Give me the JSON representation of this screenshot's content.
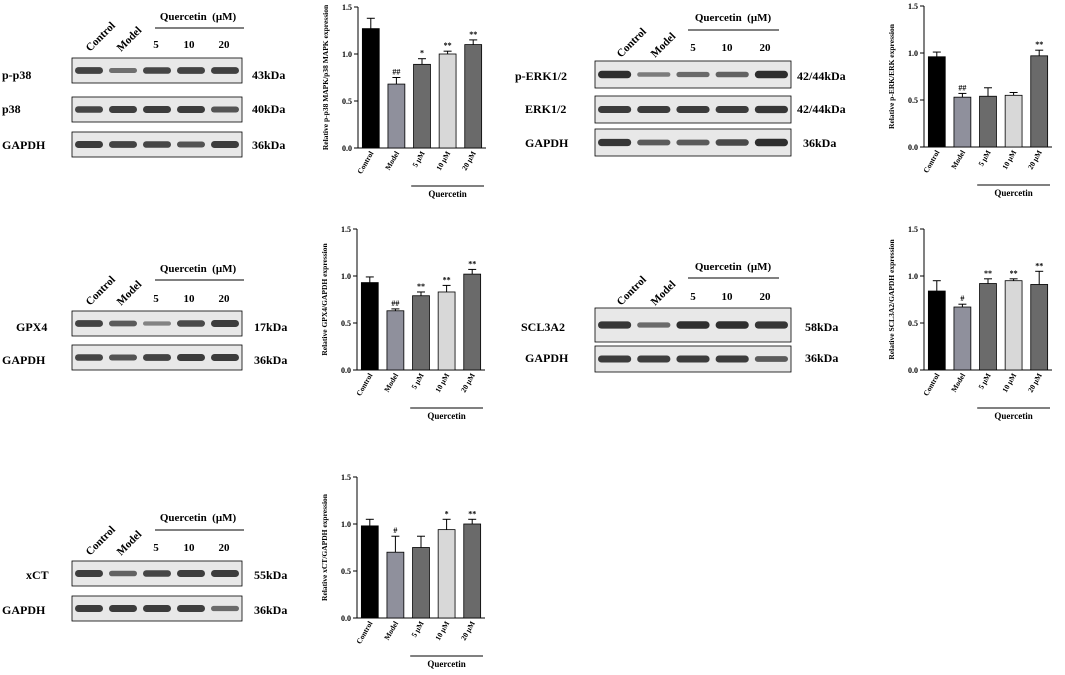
{
  "blots": [
    {
      "id": "p38",
      "header": {
        "control": "Control",
        "model": "Model",
        "treatment": "Quercetin  (μM)",
        "doses": [
          "5",
          "10",
          "20"
        ]
      },
      "rows": [
        {
          "label": "p-p38",
          "size": "43kDa",
          "intensities": [
            0.75,
            0.4,
            0.72,
            0.74,
            0.77
          ]
        },
        {
          "label": "p38",
          "size": "40kDa",
          "intensities": [
            0.72,
            0.78,
            0.8,
            0.8,
            0.6
          ]
        },
        {
          "label": "GAPDH",
          "size": "36kDa",
          "intensities": [
            0.8,
            0.75,
            0.72,
            0.62,
            0.8
          ]
        }
      ]
    },
    {
      "id": "erk",
      "header": {
        "control": "Control",
        "model": "Model",
        "treatment": "Quercetin  (μM)",
        "doses": [
          "5",
          "10",
          "20"
        ]
      },
      "rows": [
        {
          "label": "p-ERK1/2",
          "size": "42/44kDa",
          "intensities": [
            0.9,
            0.3,
            0.45,
            0.5,
            0.9
          ]
        },
        {
          "label": "ERK1/2",
          "size": "42/44kDa",
          "intensities": [
            0.82,
            0.82,
            0.82,
            0.8,
            0.85
          ]
        },
        {
          "label": "GAPDH",
          "size": "36kDa",
          "intensities": [
            0.85,
            0.55,
            0.55,
            0.7,
            0.9
          ]
        }
      ]
    },
    {
      "id": "gpx4",
      "header": {
        "control": "Control",
        "model": "Model",
        "treatment": "Quercetin  (μM)",
        "doses": [
          "5",
          "10",
          "20"
        ]
      },
      "rows": [
        {
          "label": "GPX4",
          "size": "17kDa",
          "intensities": [
            0.75,
            0.55,
            0.25,
            0.7,
            0.8
          ]
        },
        {
          "label": "GAPDH",
          "size": "36kDa",
          "intensities": [
            0.72,
            0.62,
            0.75,
            0.8,
            0.82
          ]
        }
      ]
    },
    {
      "id": "slc",
      "header": {
        "control": "Control",
        "model": "Model",
        "treatment": "Quercetin  (μM)",
        "doses": [
          "5",
          "10",
          "20"
        ]
      },
      "rows": [
        {
          "label": "SCL3A2",
          "size": "58kDa",
          "intensities": [
            0.85,
            0.45,
            0.9,
            0.9,
            0.85
          ]
        },
        {
          "label": "GAPDH",
          "size": "36kDa",
          "intensities": [
            0.8,
            0.78,
            0.8,
            0.8,
            0.55
          ]
        }
      ]
    },
    {
      "id": "xct",
      "header": {
        "control": "Control",
        "model": "Model",
        "treatment": "Quercetin  (μM)",
        "doses": [
          "5",
          "10",
          "20"
        ]
      },
      "rows": [
        {
          "label": "xCT",
          "size": "55kDa",
          "intensities": [
            0.78,
            0.5,
            0.72,
            0.78,
            0.8
          ]
        },
        {
          "label": "GAPDH",
          "size": "36kDa",
          "intensities": [
            0.8,
            0.8,
            0.8,
            0.78,
            0.45
          ]
        }
      ]
    }
  ],
  "colors": {
    "bars": [
      "#000000",
      "#8f909c",
      "#6b6b6b",
      "#d8d8d8",
      "#6a6a6a"
    ],
    "blot_background": "#e8e8e8",
    "band": "#222222"
  },
  "chart_data": [
    {
      "id": "p38",
      "type": "bar",
      "ylabel": "Relative p-p38 MAPK/p38 MAPK expression",
      "categories": [
        "Control",
        "Model",
        "5 μM",
        "10 μM",
        "20 μM"
      ],
      "values": [
        1.27,
        0.68,
        0.89,
        1.0,
        1.1
      ],
      "errors": [
        0.11,
        0.07,
        0.06,
        0.03,
        0.05
      ],
      "significance": [
        "",
        "##",
        "*",
        "**",
        "**"
      ],
      "group_label": "Quercetin",
      "ylim": [
        0,
        1.5
      ],
      "yticks": [
        "0.0",
        "0.5",
        "1.0",
        "1.5"
      ]
    },
    {
      "id": "erk",
      "type": "bar",
      "ylabel": "Relative p-ERK/ERK expression",
      "categories": [
        "Control",
        "Model",
        "5 μM",
        "10 μM",
        "20 μM"
      ],
      "values": [
        0.96,
        0.53,
        0.54,
        0.55,
        0.97
      ],
      "errors": [
        0.05,
        0.04,
        0.09,
        0.03,
        0.06
      ],
      "significance": [
        "",
        "##",
        "",
        "",
        "**"
      ],
      "group_label": "Quercetin",
      "ylim": [
        0,
        1.5
      ],
      "yticks": [
        "0.0",
        "0.5",
        "1.0",
        "1.5"
      ]
    },
    {
      "id": "gpx4",
      "type": "bar",
      "ylabel": "Relative GPX4/GAPDH expression",
      "categories": [
        "Control",
        "Model",
        "5 μM",
        "10 μM",
        "20 μM"
      ],
      "values": [
        0.93,
        0.63,
        0.79,
        0.83,
        1.02
      ],
      "errors": [
        0.06,
        0.02,
        0.04,
        0.07,
        0.05
      ],
      "significance": [
        "",
        "##",
        "**",
        "**",
        "**"
      ],
      "group_label": "Quercetin",
      "ylim": [
        0,
        1.5
      ],
      "yticks": [
        "0.0",
        "0.5",
        "1.0",
        "1.5"
      ]
    },
    {
      "id": "slc",
      "type": "bar",
      "ylabel": "Relative SCL3A2/GAPDH expression",
      "categories": [
        "Control",
        "Model",
        "5 μM",
        "10 μM",
        "20 μM"
      ],
      "values": [
        0.84,
        0.67,
        0.92,
        0.95,
        0.91
      ],
      "errors": [
        0.11,
        0.03,
        0.05,
        0.02,
        0.14
      ],
      "significance": [
        "",
        "#",
        "**",
        "**",
        "**"
      ],
      "group_label": "Quercetin",
      "ylim": [
        0,
        1.5
      ],
      "yticks": [
        "0.0",
        "0.5",
        "1.0",
        "1.5"
      ]
    },
    {
      "id": "xct",
      "type": "bar",
      "ylabel": "Relative xCT/GAPDH expression",
      "categories": [
        "Control",
        "Model",
        "5 μM",
        "10 μM",
        "20 μM"
      ],
      "values": [
        0.98,
        0.7,
        0.75,
        0.94,
        1.0
      ],
      "errors": [
        0.07,
        0.17,
        0.12,
        0.11,
        0.05
      ],
      "significance": [
        "",
        "#",
        "",
        "*",
        "**"
      ],
      "group_label": "Quercetin",
      "ylim": [
        0,
        1.5
      ],
      "yticks": [
        "0.0",
        "0.5",
        "1.0",
        "1.5"
      ]
    }
  ]
}
